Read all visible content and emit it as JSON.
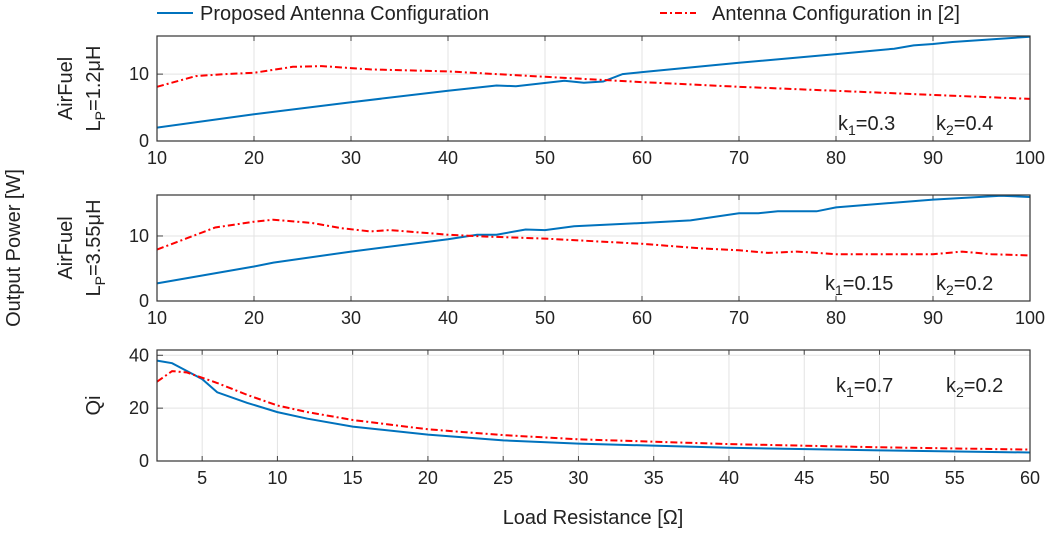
{
  "legend": {
    "placement": "top",
    "entries": [
      {
        "label": "Proposed Antenna Configuration",
        "color": "#0072BD",
        "style": "solid"
      },
      {
        "label": "Antenna Configuration in [2]",
        "color": "#FF0000",
        "style": "dash-dot"
      }
    ]
  },
  "ylabel_common": "Output Power [W]",
  "xlabel_common": "Load Resistance [Ω]",
  "chart_data": [
    {
      "type": "line",
      "ylabel_line1": "AirFuel",
      "ylabel_line2": {
        "base": "L",
        "sub": "P",
        "rest": "=1.2μH"
      },
      "xlim": [
        10,
        100
      ],
      "ylim": [
        0,
        15.7
      ],
      "xticks": [
        10,
        20,
        30,
        40,
        50,
        60,
        70,
        80,
        90,
        100
      ],
      "yticks": [
        0,
        10
      ],
      "grid": true,
      "annotations": [
        {
          "k": "k",
          "sub": "1",
          "val": "=0.3"
        },
        {
          "k": "k",
          "sub": "2",
          "val": "=0.4"
        }
      ],
      "series": [
        {
          "name": "Proposed Antenna Configuration",
          "x": [
            10,
            20,
            30,
            40,
            45,
            47,
            52,
            54,
            56,
            58,
            60,
            70,
            80,
            86,
            88,
            90,
            92,
            100
          ],
          "y": [
            2.0,
            4.0,
            5.8,
            7.5,
            8.3,
            8.2,
            9.0,
            8.7,
            8.9,
            10.0,
            10.3,
            11.7,
            13.0,
            13.8,
            14.3,
            14.5,
            14.8,
            15.6
          ]
        },
        {
          "name": "Antenna Configuration in [2]",
          "x": [
            10,
            14,
            17,
            20,
            24,
            27,
            30,
            32,
            40,
            50,
            60,
            70,
            80,
            90,
            100
          ],
          "y": [
            8.1,
            9.7,
            10.0,
            10.2,
            11.1,
            11.2,
            10.9,
            10.7,
            10.4,
            9.6,
            8.8,
            8.1,
            7.5,
            6.9,
            6.3
          ]
        }
      ]
    },
    {
      "type": "line",
      "ylabel_line1": "AirFuel",
      "ylabel_line2": {
        "base": "L",
        "sub": "P",
        "rest": "=3.55μH"
      },
      "xlim": [
        10,
        100
      ],
      "ylim": [
        0,
        16.3
      ],
      "xticks": [
        10,
        20,
        30,
        40,
        50,
        60,
        70,
        80,
        90,
        100
      ],
      "yticks": [
        0,
        10
      ],
      "grid": true,
      "annotations": [
        {
          "k": "k",
          "sub": "1",
          "val": "=0.15"
        },
        {
          "k": "k",
          "sub": "2",
          "val": "=0.2"
        }
      ],
      "series": [
        {
          "name": "Proposed Antenna Configuration",
          "x": [
            10,
            20,
            22,
            30,
            40,
            43,
            45,
            48,
            50,
            53,
            60,
            65,
            70,
            72,
            74,
            78,
            80,
            90,
            97,
            100
          ],
          "y": [
            2.7,
            5.3,
            5.9,
            7.6,
            9.5,
            10.2,
            10.2,
            11.0,
            10.9,
            11.5,
            12.0,
            12.4,
            13.5,
            13.5,
            13.8,
            13.8,
            14.4,
            15.6,
            16.2,
            16.0
          ]
        },
        {
          "name": "Antenna Configuration in [2]",
          "x": [
            10,
            16,
            20,
            22,
            26,
            29,
            32,
            34,
            40,
            44,
            50,
            60,
            66,
            70,
            73,
            76,
            80,
            90,
            93,
            96,
            100
          ],
          "y": [
            7.9,
            11.3,
            12.2,
            12.5,
            12.0,
            11.2,
            10.7,
            10.9,
            10.2,
            9.9,
            9.6,
            8.8,
            8.1,
            7.8,
            7.4,
            7.6,
            7.2,
            7.2,
            7.6,
            7.2,
            7.0
          ]
        }
      ]
    },
    {
      "type": "line",
      "ylabel_line1": "Qi",
      "xlim": [
        2,
        60
      ],
      "ylim": [
        0,
        42
      ],
      "xticks": [
        5,
        10,
        15,
        20,
        25,
        30,
        35,
        40,
        45,
        50,
        55,
        60
      ],
      "yticks": [
        0,
        20,
        40
      ],
      "grid": true,
      "annotations": [
        {
          "k": "k",
          "sub": "1",
          "val": "=0.7"
        },
        {
          "k": "k",
          "sub": "2",
          "val": "=0.2"
        }
      ],
      "series": [
        {
          "name": "Proposed Antenna Configuration",
          "x": [
            2,
            3,
            4,
            5,
            6,
            8,
            10,
            12,
            15,
            20,
            25,
            30,
            40,
            50,
            60
          ],
          "y": [
            38,
            37,
            34,
            31,
            26,
            22,
            18.5,
            16,
            13,
            10,
            7.8,
            6.6,
            5,
            4,
            3.2
          ]
        },
        {
          "name": "Antenna Configuration in [2]",
          "x": [
            2,
            3,
            4,
            6,
            8,
            10,
            12,
            15,
            20,
            25,
            30,
            40,
            50,
            60
          ],
          "y": [
            30,
            34,
            33.5,
            29.5,
            25,
            21,
            18.5,
            15.5,
            12,
            9.8,
            8.2,
            6.4,
            5.2,
            4.3
          ]
        }
      ]
    }
  ]
}
